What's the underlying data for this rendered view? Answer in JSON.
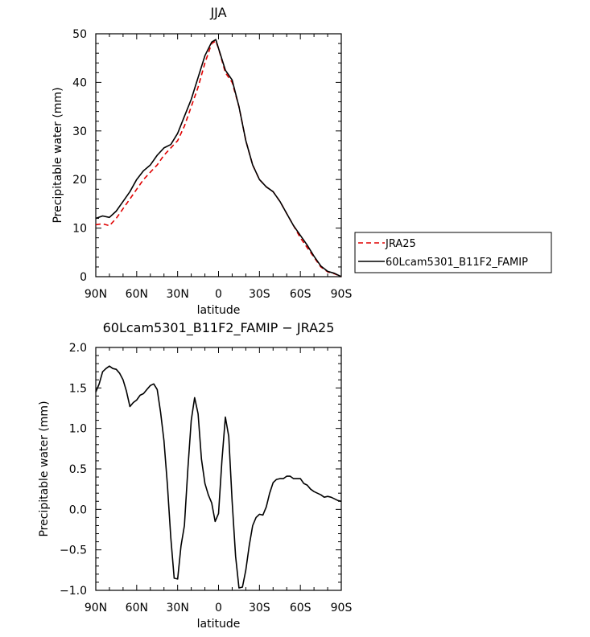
{
  "chart_data": [
    {
      "type": "line",
      "title": "JJA",
      "xlabel": "latitude",
      "ylabel": "Precipitable water (mm)",
      "xlim": [
        90,
        -90
      ],
      "ylim": [
        0,
        50
      ],
      "x_ticks": [
        90,
        60,
        30,
        0,
        -30,
        -60,
        -90
      ],
      "x_tick_labels": [
        "90N",
        "60N",
        "30N",
        "0",
        "30S",
        "60S",
        "90S"
      ],
      "y_ticks": [
        0,
        10,
        20,
        30,
        40,
        50
      ],
      "y_tick_labels": [
        "0",
        "10",
        "20",
        "30",
        "40",
        "50"
      ],
      "grid": false,
      "legend_position": "outside-right",
      "series": [
        {
          "name": "JRA25",
          "color": "#e00000",
          "dash": "dashed",
          "points": [
            [
              90,
              10.7
            ],
            [
              85,
              10.9
            ],
            [
              80,
              10.5
            ],
            [
              75,
              12
            ],
            [
              70,
              14
            ],
            [
              65,
              16
            ],
            [
              60,
              18
            ],
            [
              55,
              20
            ],
            [
              50,
              21.5
            ],
            [
              45,
              23
            ],
            [
              40,
              25
            ],
            [
              35,
              26.5
            ],
            [
              30,
              28
            ],
            [
              25,
              31
            ],
            [
              20,
              35
            ],
            [
              15,
              39
            ],
            [
              10,
              44
            ],
            [
              5,
              48
            ],
            [
              2,
              48.5
            ],
            [
              0,
              47
            ],
            [
              -5,
              42
            ],
            [
              -10,
              40
            ],
            [
              -15,
              35
            ],
            [
              -20,
              28
            ],
            [
              -25,
              23
            ],
            [
              -30,
              20
            ],
            [
              -35,
              18.5
            ],
            [
              -40,
              17.5
            ],
            [
              -45,
              15.5
            ],
            [
              -50,
              13
            ],
            [
              -55,
              10.5
            ],
            [
              -60,
              8
            ],
            [
              -65,
              6
            ],
            [
              -70,
              4
            ],
            [
              -75,
              2
            ],
            [
              -80,
              1
            ],
            [
              -85,
              0.6
            ],
            [
              -90,
              0
            ]
          ]
        },
        {
          "name": "60Lcam5301_B11F2_FAMIP",
          "color": "#000000",
          "dash": "solid",
          "points": [
            [
              90,
              12
            ],
            [
              85,
              12.5
            ],
            [
              80,
              12.2
            ],
            [
              75,
              13.5
            ],
            [
              70,
              15.5
            ],
            [
              65,
              17.5
            ],
            [
              60,
              20
            ],
            [
              55,
              21.8
            ],
            [
              50,
              23
            ],
            [
              45,
              25
            ],
            [
              40,
              26.5
            ],
            [
              35,
              27.2
            ],
            [
              30,
              29.5
            ],
            [
              25,
              33
            ],
            [
              20,
              36.5
            ],
            [
              15,
              41
            ],
            [
              10,
              45.5
            ],
            [
              5,
              48.3
            ],
            [
              2,
              48.8
            ],
            [
              0,
              47
            ],
            [
              -5,
              42.5
            ],
            [
              -10,
              40.5
            ],
            [
              -15,
              35
            ],
            [
              -20,
              28
            ],
            [
              -25,
              23
            ],
            [
              -30,
              20
            ],
            [
              -35,
              18.5
            ],
            [
              -40,
              17.5
            ],
            [
              -45,
              15.5
            ],
            [
              -50,
              13
            ],
            [
              -55,
              10.5
            ],
            [
              -60,
              8.5
            ],
            [
              -65,
              6.5
            ],
            [
              -70,
              4.2
            ],
            [
              -75,
              2.2
            ],
            [
              -80,
              1.1
            ],
            [
              -85,
              0.7
            ],
            [
              -90,
              0
            ]
          ]
        }
      ]
    },
    {
      "type": "line",
      "title": "60Lcam5301_B11F2_FAMIP − JRA25",
      "xlabel": "latitude",
      "ylabel": "Precipitable water (mm)",
      "xlim": [
        90,
        -90
      ],
      "ylim": [
        -1.0,
        2.0
      ],
      "x_ticks": [
        90,
        60,
        30,
        0,
        -30,
        -60,
        -90
      ],
      "x_tick_labels": [
        "90N",
        "60N",
        "30N",
        "0",
        "30S",
        "60S",
        "90S"
      ],
      "y_ticks": [
        -1.0,
        -0.5,
        0.0,
        0.5,
        1.0,
        1.5,
        2.0
      ],
      "y_tick_labels": [
        "−1.0",
        "−0.5",
        "0.0",
        "0.5",
        "1.0",
        "1.5",
        "2.0"
      ],
      "grid": false,
      "series": [
        {
          "color": "#000000",
          "dash": "solid",
          "points": [
            [
              90,
              1.45
            ],
            [
              87.5,
              1.55
            ],
            [
              85,
              1.7
            ],
            [
              82.5,
              1.74
            ],
            [
              80,
              1.77
            ],
            [
              77.5,
              1.74
            ],
            [
              75,
              1.73
            ],
            [
              72.5,
              1.68
            ],
            [
              70,
              1.6
            ],
            [
              67.5,
              1.46
            ],
            [
              65,
              1.27
            ],
            [
              62.5,
              1.32
            ],
            [
              60,
              1.35
            ],
            [
              57.5,
              1.41
            ],
            [
              55,
              1.43
            ],
            [
              52.5,
              1.48
            ],
            [
              50,
              1.53
            ],
            [
              47.5,
              1.55
            ],
            [
              45,
              1.48
            ],
            [
              42.5,
              1.2
            ],
            [
              40,
              0.85
            ],
            [
              37.5,
              0.3
            ],
            [
              35,
              -0.35
            ],
            [
              32.5,
              -0.85
            ],
            [
              30,
              -0.86
            ],
            [
              27.5,
              -0.45
            ],
            [
              25,
              -0.2
            ],
            [
              22.5,
              0.5
            ],
            [
              20,
              1.1
            ],
            [
              17.5,
              1.38
            ],
            [
              15,
              1.18
            ],
            [
              12.5,
              0.62
            ],
            [
              10,
              0.32
            ],
            [
              7.5,
              0.18
            ],
            [
              5,
              0.08
            ],
            [
              2.5,
              -0.15
            ],
            [
              0,
              -0.05
            ],
            [
              -2.5,
              0.6
            ],
            [
              -5,
              1.14
            ],
            [
              -7.5,
              0.9
            ],
            [
              -10,
              0.1
            ],
            [
              -12.5,
              -0.58
            ],
            [
              -15,
              -0.97
            ],
            [
              -17.5,
              -0.96
            ],
            [
              -20,
              -0.75
            ],
            [
              -22.5,
              -0.45
            ],
            [
              -25,
              -0.2
            ],
            [
              -27.5,
              -0.1
            ],
            [
              -30,
              -0.06
            ],
            [
              -32.5,
              -0.07
            ],
            [
              -35,
              0.03
            ],
            [
              -37.5,
              0.2
            ],
            [
              -40,
              0.33
            ],
            [
              -42.5,
              0.37
            ],
            [
              -45,
              0.38
            ],
            [
              -47.5,
              0.38
            ],
            [
              -50,
              0.41
            ],
            [
              -52.5,
              0.41
            ],
            [
              -55,
              0.38
            ],
            [
              -57.5,
              0.38
            ],
            [
              -60,
              0.38
            ],
            [
              -62.5,
              0.32
            ],
            [
              -65,
              0.3
            ],
            [
              -67.5,
              0.25
            ],
            [
              -70,
              0.22
            ],
            [
              -72.5,
              0.2
            ],
            [
              -75,
              0.18
            ],
            [
              -77.5,
              0.15
            ],
            [
              -80,
              0.16
            ],
            [
              -82.5,
              0.15
            ],
            [
              -85,
              0.13
            ],
            [
              -87.5,
              0.11
            ],
            [
              -90,
              0.1
            ]
          ]
        }
      ]
    }
  ]
}
